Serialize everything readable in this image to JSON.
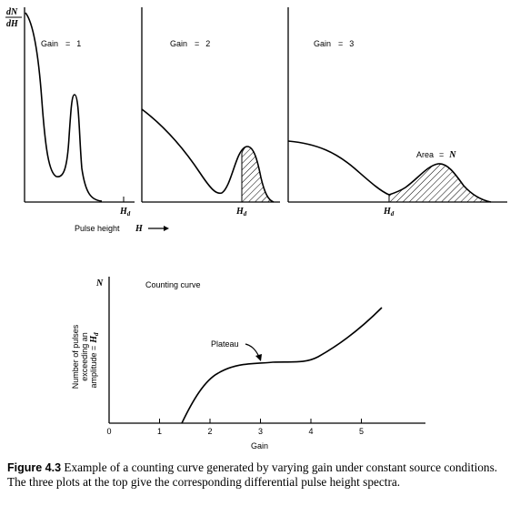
{
  "figure": {
    "top_panels": [
      {
        "gain_label": "Gain",
        "gain_eq": "=",
        "gain_value": "1",
        "hd_label": "H",
        "hd_sub": "d"
      },
      {
        "gain_label": "Gain",
        "gain_eq": "=",
        "gain_value": "2",
        "hd_label": "H",
        "hd_sub": "d"
      },
      {
        "gain_label": "Gain",
        "gain_eq": "=",
        "gain_value": "3",
        "hd_label": "H",
        "hd_sub": "d",
        "area_label": "Area",
        "area_eq": "=",
        "area_var": "N"
      }
    ],
    "y_axis_top": {
      "num": "dN",
      "den": "dH"
    },
    "x_axis_top": {
      "label": "Pulse height",
      "var": "H",
      "arrow": "→"
    },
    "counting_curve": {
      "title": "Counting curve",
      "y_var": "N",
      "y_label_lines": [
        "Number of pulses",
        "exceeding an",
        "amplitude ="
      ],
      "y_label_var": "H",
      "y_label_sub": "d",
      "plateau_label": "Plateau",
      "x_label": "Gain",
      "x_ticks": [
        "0",
        "1",
        "2",
        "3",
        "4",
        "5"
      ]
    }
  },
  "caption": {
    "label": "Figure 4.3",
    "text": "Example of a counting curve generated by varying gain under constant source conditions. The three plots at the top give the corresponding differential pulse height spectra."
  }
}
